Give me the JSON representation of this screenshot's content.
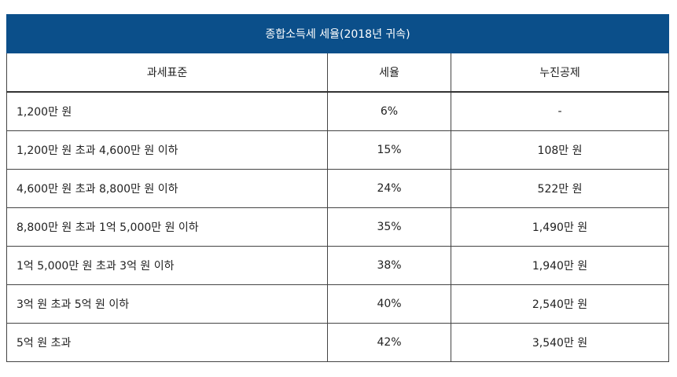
{
  "table": {
    "title": "종합소득세 세율(2018년 귀속)",
    "headers": {
      "bracket": "과세표준",
      "rate": "세율",
      "deduction": "누진공제"
    },
    "rows": [
      {
        "bracket": "1,200만 원",
        "rate": "6%",
        "deduction": "-"
      },
      {
        "bracket": "1,200만 원 초과 4,600만 원 이하",
        "rate": "15%",
        "deduction": "108만 원"
      },
      {
        "bracket": "4,600만 원 초과 8,800만 원 이하",
        "rate": "24%",
        "deduction": "522만 원"
      },
      {
        "bracket": "8,800만 원 초과 1억 5,000만 원 이하",
        "rate": "35%",
        "deduction": "1,490만 원"
      },
      {
        "bracket": "1억 5,000만 원 초과 3억 원 이하",
        "rate": "38%",
        "deduction": "1,940만 원"
      },
      {
        "bracket": "3억 원 초과 5억 원 이하",
        "rate": "40%",
        "deduction": "2,540만 원"
      },
      {
        "bracket": "5억 원 초과",
        "rate": "42%",
        "deduction": "3,540만 원"
      }
    ]
  },
  "colors": {
    "title_background": "#0b4f8a",
    "title_text": "#ffffff",
    "border": "#444444"
  }
}
